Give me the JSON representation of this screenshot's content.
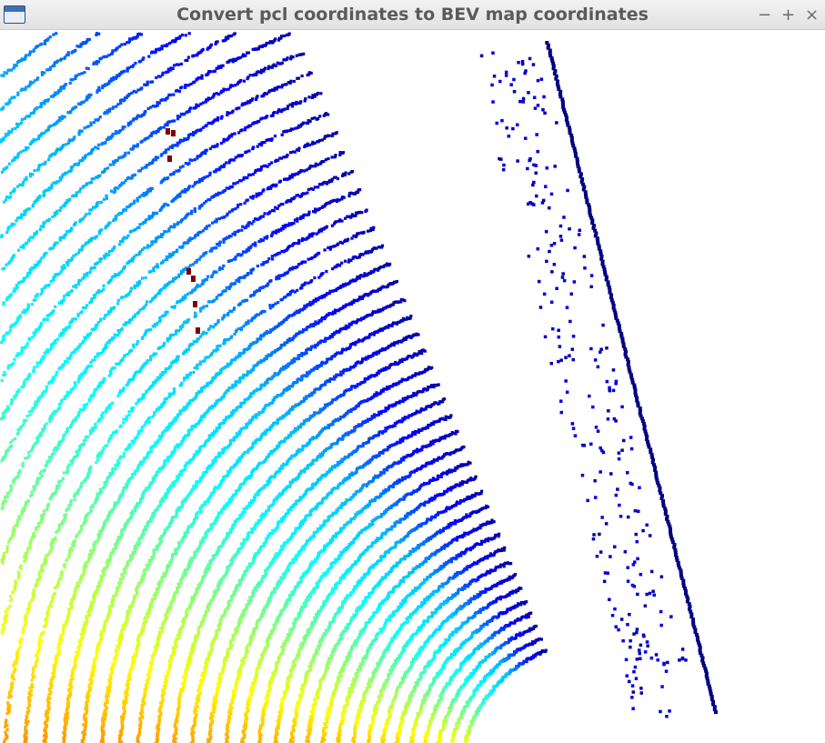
{
  "window": {
    "title": "Convert pcl coordinates to BEV map coordinates",
    "app_icon": "window-app-icon",
    "controls": {
      "minimize_label": "−",
      "maximize_label": "+",
      "close_label": "×"
    }
  },
  "bev_view": {
    "description_icon": "point-cloud-bev-canvas",
    "colormap": "jet",
    "background_color": "#ffffff",
    "colormap_stops": [
      "#00007f",
      "#0000ff",
      "#00bfff",
      "#00ffff",
      "#80ff80",
      "#ffff00",
      "#ff8000",
      "#ff0000",
      "#7f0000"
    ]
  }
}
